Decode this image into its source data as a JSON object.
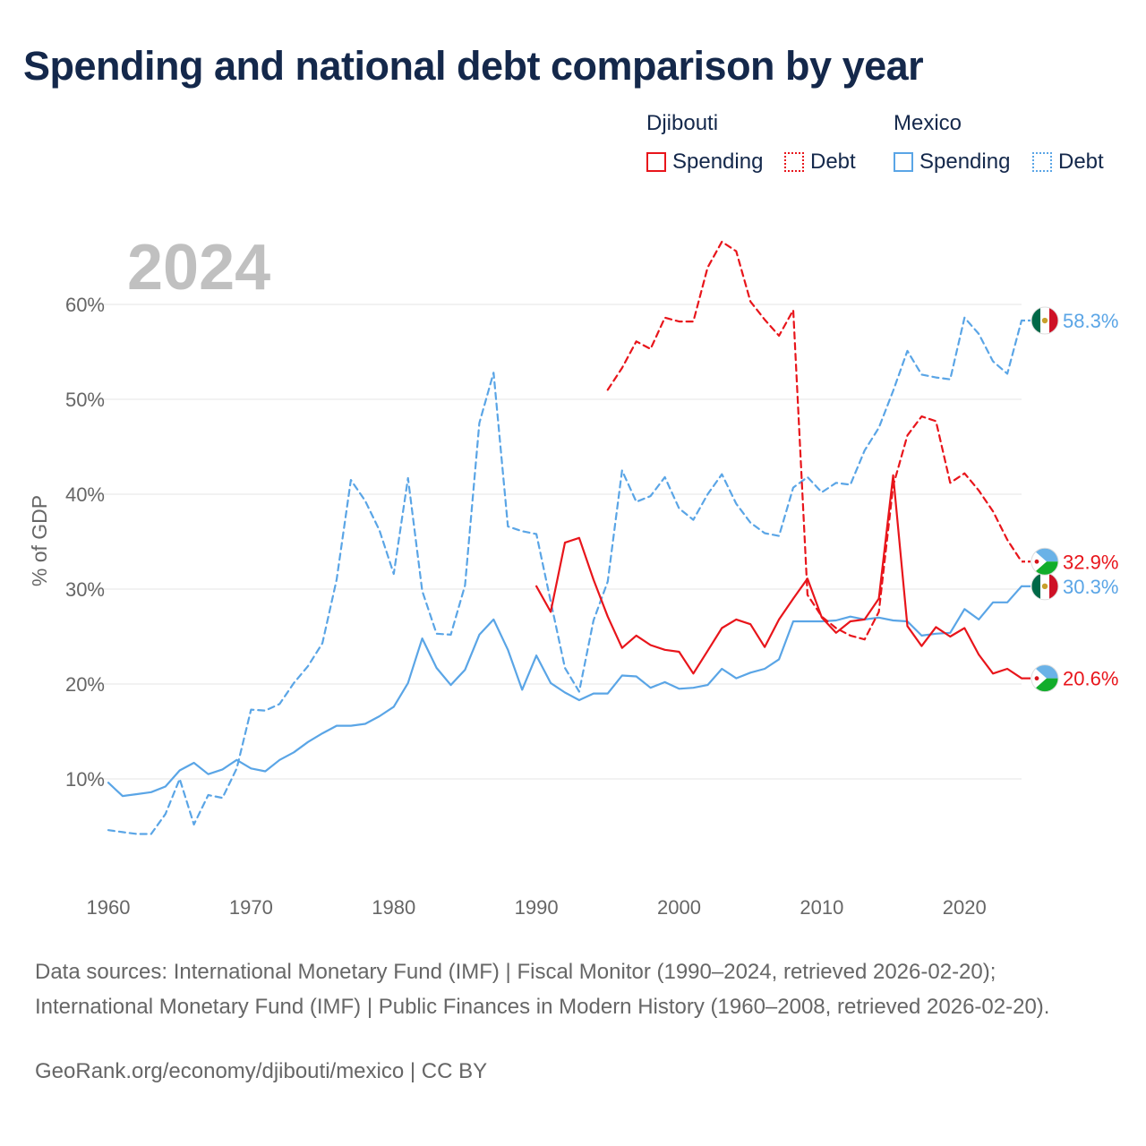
{
  "title": "Spending and national debt comparison by year",
  "legend": {
    "groups": [
      {
        "country": "Djibouti",
        "items": [
          {
            "label": "Spending",
            "style": "solid",
            "color": "#e8151b"
          },
          {
            "label": "Debt",
            "style": "dotted",
            "color": "#e8151b"
          }
        ]
      },
      {
        "country": "Mexico",
        "items": [
          {
            "label": "Spending",
            "style": "solid",
            "color": "#5aa5e6"
          },
          {
            "label": "Debt",
            "style": "dotted",
            "color": "#5aa5e6"
          }
        ]
      }
    ]
  },
  "source_text": "Data sources: International Monetary Fund (IMF) | Fiscal Monitor (1990–2024, retrieved 2026-02-20); International Monetary Fund (IMF) | Public Finances in Modern History (1960–2008, retrieved 2026-02-20).",
  "credit": "GeoRank.org/economy/djibouti/mexico | CC BY",
  "chart_data": {
    "type": "line",
    "title": "Spending and national debt comparison by year",
    "year_label": "2024",
    "ylabel": "% of GDP",
    "xlabel": "",
    "xlim": [
      1960,
      2024
    ],
    "ylim": [
      1.5,
      68
    ],
    "x_ticks": [
      1960,
      1970,
      1980,
      1990,
      2000,
      2010,
      2020
    ],
    "y_ticks": [
      10,
      20,
      30,
      40,
      50,
      60
    ],
    "y_tick_labels": [
      "10%",
      "20%",
      "30%",
      "40%",
      "50%",
      "60%"
    ],
    "grid": true,
    "series": [
      {
        "name": "Mexico Debt",
        "country": "Mexico",
        "measure": "Debt",
        "color": "#5aa5e6",
        "dash": "dashed",
        "end_label": "58.3%",
        "flag": "mexico",
        "x": [
          1960,
          1961,
          1962,
          1963,
          1964,
          1965,
          1966,
          1967,
          1968,
          1969,
          1970,
          1971,
          1972,
          1973,
          1974,
          1975,
          1976,
          1977,
          1978,
          1979,
          1980,
          1981,
          1982,
          1983,
          1984,
          1985,
          1986,
          1987,
          1988,
          1989,
          1990,
          1991,
          1992,
          1993,
          1994,
          1995,
          1996,
          1997,
          1998,
          1999,
          2000,
          2001,
          2002,
          2003,
          2004,
          2005,
          2006,
          2007,
          2008,
          2009,
          2010,
          2011,
          2012,
          2013,
          2014,
          2015,
          2016,
          2017,
          2018,
          2019,
          2020,
          2021,
          2022,
          2023,
          2024
        ],
        "values": [
          4.6,
          4.4,
          4.2,
          4.2,
          6.3,
          10.0,
          5.2,
          8.3,
          8.0,
          11.1,
          17.3,
          17.2,
          17.9,
          20.1,
          21.9,
          24.3,
          31.0,
          41.5,
          39.3,
          36.2,
          31.6,
          41.7,
          29.8,
          25.3,
          25.2,
          30.4,
          47.5,
          52.8,
          36.6,
          36.1,
          35.8,
          28.7,
          21.7,
          19.2,
          26.7,
          30.8,
          42.5,
          39.2,
          39.8,
          41.8,
          38.5,
          37.3,
          40.0,
          42.1,
          39.0,
          37.0,
          35.9,
          35.6,
          40.7,
          41.8,
          40.2,
          41.2,
          41.0,
          44.6,
          47.0,
          50.9,
          55.1,
          52.6,
          52.3,
          52.1,
          58.6,
          56.9,
          54.0,
          52.7,
          58.3
        ]
      },
      {
        "name": "Mexico Spending",
        "country": "Mexico",
        "measure": "Spending",
        "color": "#5aa5e6",
        "dash": "solid",
        "end_label": "30.3%",
        "flag": "mexico",
        "x": [
          1960,
          1961,
          1962,
          1963,
          1964,
          1965,
          1966,
          1967,
          1968,
          1969,
          1970,
          1971,
          1972,
          1973,
          1974,
          1975,
          1976,
          1977,
          1978,
          1979,
          1980,
          1981,
          1982,
          1983,
          1984,
          1985,
          1986,
          1987,
          1988,
          1989,
          1990,
          1991,
          1992,
          1993,
          1994,
          1995,
          1996,
          1997,
          1998,
          1999,
          2000,
          2001,
          2002,
          2003,
          2004,
          2005,
          2006,
          2007,
          2008,
          2009,
          2010,
          2011,
          2012,
          2013,
          2014,
          2015,
          2016,
          2017,
          2018,
          2019,
          2020,
          2021,
          2022,
          2023,
          2024
        ],
        "values": [
          9.6,
          8.2,
          8.4,
          8.6,
          9.2,
          10.9,
          11.7,
          10.5,
          11.0,
          12.0,
          11.1,
          10.8,
          12.0,
          12.8,
          13.9,
          14.8,
          15.6,
          15.6,
          15.8,
          16.6,
          17.6,
          20.1,
          24.8,
          21.7,
          19.9,
          21.5,
          25.2,
          26.8,
          23.6,
          19.4,
          23.0,
          20.1,
          19.1,
          18.3,
          19.0,
          19.0,
          20.9,
          20.8,
          19.6,
          20.2,
          19.5,
          19.6,
          19.9,
          21.6,
          20.6,
          21.2,
          21.6,
          22.6,
          26.6,
          26.6,
          26.6,
          26.7,
          27.1,
          26.8,
          27.0,
          26.7,
          26.6,
          25.1,
          25.3,
          25.4,
          27.9,
          26.8,
          28.6,
          28.6,
          30.3
        ]
      },
      {
        "name": "Djibouti Debt",
        "country": "Djibouti",
        "measure": "Debt",
        "color": "#e8151b",
        "dash": "dashed",
        "end_label": "32.9%",
        "flag": "djibouti",
        "x": [
          1995,
          1996,
          1997,
          1998,
          1999,
          2000,
          2001,
          2002,
          2003,
          2004,
          2005,
          2006,
          2007,
          2008,
          2009,
          2010,
          2011,
          2012,
          2013,
          2014,
          2015,
          2016,
          2017,
          2018,
          2019,
          2020,
          2021,
          2022,
          2023,
          2024
        ],
        "values": [
          51.0,
          53.3,
          56.1,
          55.3,
          58.6,
          58.2,
          58.2,
          63.9,
          66.6,
          65.6,
          60.3,
          58.4,
          56.7,
          59.4,
          29.4,
          27.1,
          25.9,
          25.1,
          24.7,
          27.6,
          40.9,
          46.2,
          48.2,
          47.7,
          41.2,
          42.2,
          40.4,
          38.2,
          35.2,
          32.9
        ]
      },
      {
        "name": "Djibouti Spending",
        "country": "Djibouti",
        "measure": "Spending",
        "color": "#e8151b",
        "dash": "solid",
        "end_label": "20.6%",
        "flag": "djibouti",
        "x": [
          1990,
          1991,
          1992,
          1993,
          1994,
          1995,
          1996,
          1997,
          1998,
          1999,
          2000,
          2001,
          2002,
          2003,
          2004,
          2005,
          2006,
          2007,
          2008,
          2009,
          2010,
          2011,
          2012,
          2013,
          2014,
          2015,
          2016,
          2017,
          2018,
          2019,
          2020,
          2021,
          2022,
          2023,
          2024
        ],
        "values": [
          30.3,
          27.6,
          34.9,
          35.4,
          31.0,
          27.1,
          23.8,
          25.1,
          24.1,
          23.6,
          23.4,
          21.1,
          23.5,
          25.9,
          26.8,
          26.3,
          23.9,
          26.8,
          29.0,
          31.1,
          27.0,
          25.4,
          26.6,
          26.8,
          29.0,
          42.0,
          26.1,
          24.0,
          26.0,
          25.0,
          25.9,
          23.1,
          21.1,
          21.6,
          20.6
        ]
      }
    ]
  }
}
